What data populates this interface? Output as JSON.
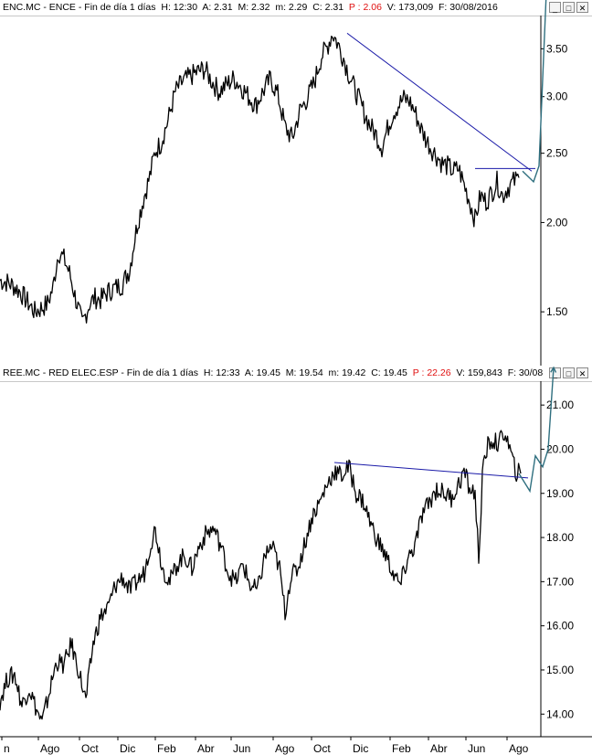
{
  "panels": [
    {
      "symbol": "ENC.MC",
      "name": "ENCE",
      "period": "Fin de día 1 días",
      "header": {
        "h": "H: 12:30",
        "a": "A: 2.31",
        "m": "M: 2.32",
        "mi": "m: 2.29",
        "c": "C: 2.31",
        "p": "P : 2.06",
        "v": "V: 173,009",
        "f": "F: 30/08/2016"
      }
    },
    {
      "symbol": "REE.MC",
      "name": "RED ELEC.ESP",
      "period": "Fin de día 1 días",
      "header": {
        "h": "H: 12:33",
        "a": "A: 19.45",
        "m": "M: 19.54",
        "mi": "m: 19.42",
        "c": "C: 19.45",
        "p": "P : 22.26",
        "v": "V: 159,843",
        "f": "F: 30/08"
      }
    }
  ],
  "window_buttons": {
    "minimize": "_",
    "restore": "□",
    "close": "✕"
  },
  "colors": {
    "price": "#000000",
    "trendline": "#1a1aa8",
    "projection": "#2f6f7f",
    "title_red": "#e01010"
  },
  "chart_data": [
    {
      "type": "line",
      "title": "ENC.MC - ENCE",
      "y_scale": "log",
      "ylim": [
        1.28,
        3.85
      ],
      "yticks": [
        1.5,
        2.0,
        2.5,
        3.0,
        3.5
      ],
      "ytick_labels": [
        "1.50",
        "2.00",
        "2.50",
        "3.00",
        "3.50"
      ],
      "series": [
        {
          "x": [
            0,
            8,
            15,
            22,
            30,
            38,
            46,
            52,
            58,
            64,
            70,
            76,
            82,
            90,
            98,
            104,
            110,
            118,
            126,
            134,
            142,
            150,
            158,
            164,
            170,
            176,
            184,
            192,
            200,
            208,
            216,
            224,
            232,
            240,
            248,
            256,
            264,
            272,
            280,
            288,
            296,
            304,
            312,
            320,
            328,
            336,
            344,
            352,
            358,
            364,
            370,
            376,
            382,
            388,
            394,
            400,
            406,
            412,
            418,
            424,
            430,
            436,
            442,
            448,
            454,
            460,
            466,
            472,
            478,
            484,
            490,
            496,
            502,
            508,
            514,
            520,
            526,
            532,
            538,
            544,
            550,
            556,
            562,
            568
          ],
          "values": [
            1.66,
            1.65,
            1.63,
            1.6,
            1.55,
            1.5,
            1.52,
            1.54,
            1.62,
            1.82,
            1.78,
            1.7,
            1.58,
            1.44,
            1.54,
            1.57,
            1.56,
            1.6,
            1.62,
            1.64,
            1.72,
            1.98,
            2.18,
            2.32,
            2.52,
            2.58,
            2.78,
            3.05,
            3.15,
            3.2,
            3.25,
            3.28,
            3.15,
            3.05,
            3.12,
            3.18,
            3.1,
            3.0,
            2.92,
            3.05,
            3.18,
            3.02,
            2.72,
            2.62,
            2.86,
            2.98,
            3.14,
            3.42,
            3.52,
            3.68,
            3.55,
            3.4,
            3.22,
            3.08,
            2.95,
            2.82,
            2.72,
            2.65,
            2.55,
            2.7,
            2.84,
            2.92,
            2.98,
            2.96,
            2.86,
            2.72,
            2.62,
            2.54,
            2.48,
            2.42,
            2.4,
            2.36,
            2.38,
            2.26,
            2.14,
            2.02,
            2.18,
            2.14,
            2.2,
            2.28,
            2.18,
            2.24,
            2.28,
            2.31
          ]
        }
      ],
      "trendlines": [
        {
          "from": [
            380,
            3.68
          ],
          "to": [
            582,
            2.36
          ]
        },
        {
          "from": [
            520,
            2.38
          ],
          "to": [
            586,
            2.38
          ]
        }
      ],
      "projection": {
        "points": [
          [
            572,
            2.36
          ],
          [
            584,
            2.28
          ],
          [
            590,
            2.4
          ],
          [
            598,
            4.2
          ]
        ]
      }
    },
    {
      "type": "line",
      "title": "REE.MC - RED ELEC.ESP",
      "y_scale": "linear",
      "ylim": [
        13.55,
        21.5
      ],
      "yticks": [
        14.0,
        15.0,
        16.0,
        17.0,
        18.0,
        19.0,
        20.0,
        21.0
      ],
      "ytick_labels": [
        "14.00",
        "15.00",
        "16.00",
        "17.00",
        "18.00",
        "19.00",
        "20.00",
        "21.00"
      ],
      "series": [
        {
          "x": [
            0,
            8,
            16,
            24,
            32,
            40,
            46,
            54,
            62,
            70,
            78,
            86,
            94,
            102,
            110,
            118,
            126,
            134,
            142,
            150,
            158,
            164,
            170,
            178,
            186,
            194,
            202,
            210,
            218,
            226,
            234,
            242,
            250,
            258,
            266,
            274,
            282,
            290,
            298,
            306,
            312,
            318,
            326,
            334,
            342,
            350,
            358,
            366,
            374,
            382,
            390,
            398,
            406,
            414,
            422,
            430,
            438,
            446,
            454,
            462,
            470,
            478,
            486,
            494,
            502,
            508,
            514,
            520,
            524,
            528,
            534,
            540,
            546,
            552,
            558,
            564,
            570
          ],
          "values": [
            14.3,
            14.8,
            14.9,
            14.2,
            14.6,
            14.1,
            13.8,
            14.5,
            15.2,
            15.1,
            15.6,
            15.0,
            14.3,
            15.6,
            16.2,
            16.4,
            16.9,
            17.1,
            16.8,
            17.0,
            17.2,
            17.8,
            18.2,
            17.3,
            17.0,
            17.4,
            17.6,
            17.3,
            17.8,
            18.1,
            18.2,
            17.8,
            17.2,
            17.0,
            17.4,
            16.9,
            16.8,
            17.6,
            17.8,
            17.3,
            16.3,
            17.1,
            17.3,
            17.9,
            18.5,
            18.8,
            19.2,
            19.5,
            19.4,
            19.6,
            19.0,
            18.8,
            18.3,
            17.9,
            17.6,
            17.2,
            16.9,
            17.5,
            17.8,
            18.5,
            18.8,
            19.1,
            19.0,
            18.9,
            19.2,
            19.5,
            19.1,
            19.0,
            17.5,
            19.4,
            20.1,
            20.2,
            20.1,
            20.4,
            20.0,
            19.5,
            19.45
          ]
        }
      ],
      "trendlines": [
        {
          "from": [
            366,
            19.7
          ],
          "to": [
            578,
            19.35
          ]
        }
      ],
      "projection": {
        "points": [
          [
            568,
            19.45
          ],
          [
            580,
            19.05
          ],
          [
            586,
            19.85
          ],
          [
            594,
            19.6
          ],
          [
            600,
            20.0
          ],
          [
            606,
            21.85
          ]
        ]
      }
    }
  ],
  "x_axis": {
    "labels": [
      "n",
      "Ago",
      "Oct",
      "Dic",
      "Feb",
      "Abr",
      "Jun",
      "Ago",
      "Oct",
      "Dic",
      "Feb",
      "Abr",
      "Jun",
      "Ago"
    ]
  }
}
